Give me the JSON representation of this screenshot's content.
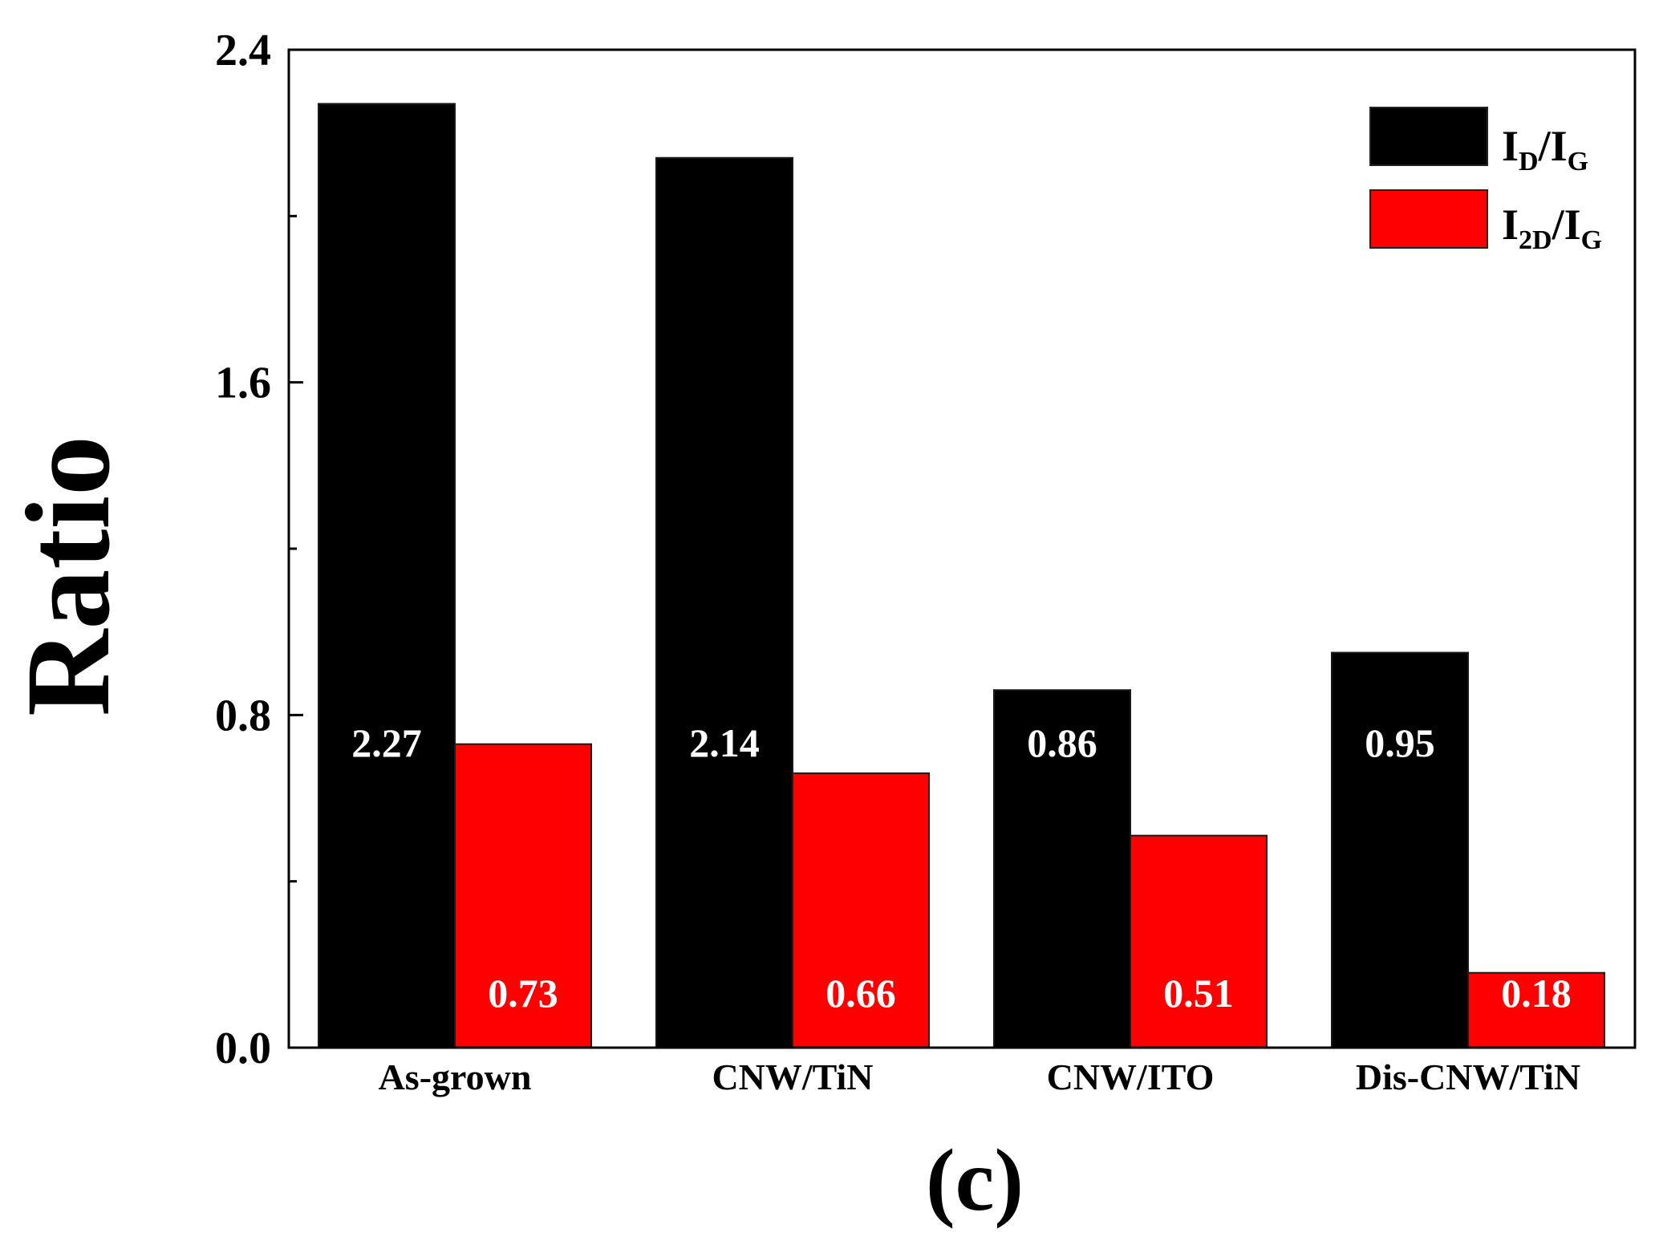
{
  "chart_data": {
    "type": "bar",
    "categories": [
      "As-grown",
      "CNW/TiN",
      "CNW/ITO",
      "Dis-CNW/TiN"
    ],
    "series": [
      {
        "name": "I_D/I_G",
        "legend": {
          "main1": "I",
          "sub1": "D",
          "slash": "/",
          "main2": "I",
          "sub2": "G"
        },
        "color": "#000000",
        "values": [
          2.27,
          2.14,
          0.86,
          0.95
        ],
        "labels": [
          "2.27",
          "2.14",
          "0.86",
          "0.95"
        ]
      },
      {
        "name": "I_2D/I_G",
        "legend": {
          "main1": "I",
          "sub1": "2D",
          "slash": "/",
          "main2": "I",
          "sub2": "G"
        },
        "color": "#ff0000",
        "values": [
          0.73,
          0.66,
          0.51,
          0.18
        ],
        "labels": [
          "0.73",
          "0.66",
          "0.51",
          "0.18"
        ]
      }
    ],
    "ylabel": "Ratio",
    "xlabel": "",
    "ylim": [
      0.0,
      2.4
    ],
    "yticks": [
      "0.0",
      "0.8",
      "1.6",
      "2.4"
    ],
    "yticks_values": [
      0.0,
      0.8,
      1.6,
      2.4
    ],
    "minor_yticks_values": [
      0.4,
      1.2,
      2.0
    ],
    "legend_position": "top-right",
    "panel_label": "(c)"
  }
}
